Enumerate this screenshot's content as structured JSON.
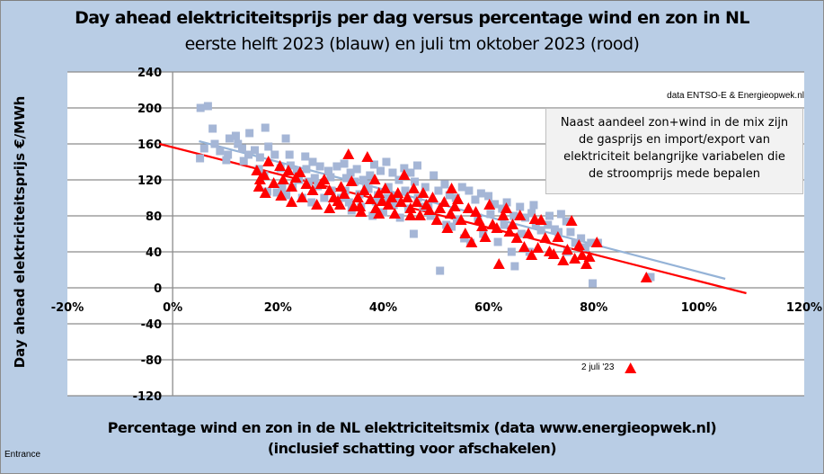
{
  "chart_data": {
    "type": "scatter",
    "title": "Day ahead elektriciteitsprijs per dag versus percentage wind en zon in NL",
    "subtitle": "eerste helft 2023 (blauw) en juli tm oktober 2023 (rood)",
    "xlabel": "Percentage wind en zon in de NL elektriciteitsmix (data www.energieopwek.nl)",
    "xlabel2": "(inclusief schatting voor afschakelen)",
    "ylabel": "Day ahead elektriciteitsprijs €/MWh",
    "xlim": [
      -20,
      120
    ],
    "ylim": [
      -120,
      240
    ],
    "x_ticks": [
      "-20%",
      "0%",
      "20%",
      "40%",
      "60%",
      "80%",
      "100%",
      "120%"
    ],
    "x_tick_values": [
      -20,
      0,
      20,
      40,
      60,
      80,
      100,
      120
    ],
    "y_ticks": [
      "240",
      "200",
      "160",
      "120",
      "80",
      "40",
      "0",
      "-40",
      "-80",
      "-120"
    ],
    "y_tick_values": [
      240,
      200,
      160,
      120,
      80,
      40,
      0,
      -40,
      -80,
      -120
    ],
    "grid": "horizontal",
    "legend": "none",
    "source_note": "data ENTSO-E & Energieopwek.nl",
    "text_box": [
      "Naast aandeel zon+wind in de mix zijn",
      "de gasprijs en import/export van",
      "elektriciteit belangrijke variabelen die",
      "de stroomprijs mede bepalen"
    ],
    "annotation": {
      "label": "2 juli '23",
      "x": 87,
      "y": -90
    },
    "series": [
      {
        "name": "eerste helft 2023",
        "color": "#a5b6d6",
        "marker": "square",
        "points": [
          [
            5.3,
            200
          ],
          [
            6.7,
            202
          ],
          [
            5.2,
            144
          ],
          [
            7.6,
            177
          ],
          [
            10.8,
            166
          ],
          [
            12,
            169
          ],
          [
            13.2,
            155
          ],
          [
            14.6,
            172
          ],
          [
            15.6,
            153
          ],
          [
            17.6,
            178
          ],
          [
            18.2,
            157
          ],
          [
            10.5,
            148
          ],
          [
            10.2,
            142
          ],
          [
            9,
            152
          ],
          [
            13.5,
            141
          ],
          [
            16.6,
            145
          ],
          [
            19.4,
            148
          ],
          [
            21.5,
            166
          ],
          [
            22.2,
            148
          ],
          [
            20.5,
            133
          ],
          [
            23.6,
            130
          ],
          [
            25.2,
            146
          ],
          [
            26.6,
            140
          ],
          [
            28,
            135
          ],
          [
            24,
            120
          ],
          [
            22.8,
            112
          ],
          [
            19.8,
            106
          ],
          [
            21.6,
            103
          ],
          [
            18,
            107
          ],
          [
            17.4,
            125
          ],
          [
            25.8,
            118
          ],
          [
            27.6,
            113
          ],
          [
            30,
            123
          ],
          [
            31.2,
            135
          ],
          [
            32.6,
            138
          ],
          [
            33.8,
            128
          ],
          [
            35,
            132
          ],
          [
            36.2,
            120
          ],
          [
            37.5,
            125
          ],
          [
            38.3,
            137
          ],
          [
            39.5,
            130
          ],
          [
            40.6,
            140
          ],
          [
            41.8,
            128
          ],
          [
            43,
            120
          ],
          [
            44,
            133
          ],
          [
            45.2,
            128
          ],
          [
            46.5,
            136
          ],
          [
            30.2,
            108
          ],
          [
            32,
            100
          ],
          [
            33.5,
            95
          ],
          [
            35.5,
            104
          ],
          [
            37.2,
            110
          ],
          [
            39,
            103
          ],
          [
            41,
            112
          ],
          [
            42.5,
            101
          ],
          [
            44.2,
            108
          ],
          [
            46,
            118
          ],
          [
            48,
            112
          ],
          [
            49.6,
            125
          ],
          [
            50.5,
            108
          ],
          [
            51.7,
            115
          ],
          [
            52.6,
            103
          ],
          [
            53.8,
            100
          ],
          [
            55,
            112
          ],
          [
            56.3,
            108
          ],
          [
            57.5,
            98
          ],
          [
            58.6,
            105
          ],
          [
            60,
            102
          ],
          [
            61.2,
            93
          ],
          [
            62.6,
            88
          ],
          [
            63.5,
            95
          ],
          [
            64.8,
            80
          ],
          [
            66,
            90
          ],
          [
            67,
            78
          ],
          [
            68.2,
            83
          ],
          [
            69,
            70
          ],
          [
            70,
            64
          ],
          [
            71.3,
            70
          ],
          [
            72.6,
            65
          ],
          [
            73.8,
            82
          ],
          [
            74.8,
            74
          ],
          [
            75.6,
            62
          ],
          [
            76.5,
            50
          ],
          [
            77.6,
            55
          ],
          [
            78.4,
            45
          ],
          [
            79.5,
            50
          ],
          [
            80.8,
            50
          ],
          [
            90.8,
            12
          ],
          [
            79.8,
            5
          ],
          [
            50.8,
            19
          ],
          [
            56.6,
            50
          ],
          [
            65,
            24
          ],
          [
            61.8,
            51
          ],
          [
            45.8,
            60
          ],
          [
            43.2,
            78
          ],
          [
            40,
            84
          ],
          [
            38,
            80
          ],
          [
            35.8,
            90
          ],
          [
            34,
            86
          ],
          [
            32.8,
            108
          ],
          [
            28.8,
            100
          ],
          [
            26.4,
            95
          ],
          [
            24.6,
            100
          ],
          [
            47.6,
            90
          ],
          [
            49,
            80
          ],
          [
            52,
            70
          ],
          [
            54,
            76
          ],
          [
            58,
            78
          ],
          [
            60.4,
            82
          ],
          [
            63,
            70
          ],
          [
            66.3,
            60
          ],
          [
            68.6,
            92
          ],
          [
            71.6,
            80
          ],
          [
            73.3,
            62
          ],
          [
            67.8,
            40
          ],
          [
            75,
            40
          ],
          [
            64.4,
            40
          ],
          [
            59,
            60
          ],
          [
            55.4,
            55
          ],
          [
            53,
            68
          ],
          [
            48.6,
            92
          ],
          [
            46.6,
            100
          ],
          [
            44.8,
            88
          ],
          [
            42,
            92
          ],
          [
            40.8,
            100
          ],
          [
            38.6,
            96
          ],
          [
            36.8,
            115
          ],
          [
            34.6,
            118
          ],
          [
            33,
            122
          ],
          [
            29.6,
            130
          ],
          [
            27,
            122
          ],
          [
            25.4,
            132
          ],
          [
            22.4,
            136
          ],
          [
            20.8,
            112
          ],
          [
            16.4,
            132
          ],
          [
            14.4,
            148
          ],
          [
            12.4,
            160
          ],
          [
            8,
            160
          ],
          [
            6,
            155
          ]
        ]
      },
      {
        "name": "juli tm oktober 2023",
        "color": "#ff0000",
        "marker": "triangle",
        "points": [
          [
            16,
            130
          ],
          [
            16.6,
            120
          ],
          [
            17.4,
            125
          ],
          [
            16.4,
            112
          ],
          [
            17.6,
            105
          ],
          [
            18.2,
            140
          ],
          [
            19.2,
            116
          ],
          [
            20.4,
            135
          ],
          [
            21,
            120
          ],
          [
            22,
            130
          ],
          [
            22.6,
            112
          ],
          [
            23.4,
            122
          ],
          [
            24.2,
            128
          ],
          [
            20.6,
            102
          ],
          [
            22.6,
            95
          ],
          [
            24.6,
            100
          ],
          [
            25.4,
            115
          ],
          [
            26.6,
            108
          ],
          [
            27.4,
            92
          ],
          [
            28.2,
            115
          ],
          [
            28.8,
            120
          ],
          [
            29.8,
            108
          ],
          [
            30.6,
            100
          ],
          [
            31.4,
            96
          ],
          [
            32,
            112
          ],
          [
            32.6,
            104
          ],
          [
            33.4,
            148
          ],
          [
            34,
            118
          ],
          [
            34.4,
            90
          ],
          [
            35.2,
            100
          ],
          [
            35.8,
            84
          ],
          [
            36.4,
            108
          ],
          [
            37,
            145
          ],
          [
            37.6,
            98
          ],
          [
            38.4,
            120
          ],
          [
            38.6,
            88
          ],
          [
            39.2,
            105
          ],
          [
            39.8,
            96
          ],
          [
            40.4,
            110
          ],
          [
            41,
            92
          ],
          [
            41.6,
            100
          ],
          [
            42.2,
            82
          ],
          [
            42.8,
            105
          ],
          [
            43.4,
            95
          ],
          [
            44,
            125
          ],
          [
            44.6,
            100
          ],
          [
            45.2,
            88
          ],
          [
            45.8,
            110
          ],
          [
            46.4,
            95
          ],
          [
            47,
            80
          ],
          [
            47.6,
            105
          ],
          [
            48.2,
            92
          ],
          [
            48.8,
            86
          ],
          [
            49.4,
            100
          ],
          [
            50.2,
            75
          ],
          [
            50.8,
            88
          ],
          [
            51.6,
            95
          ],
          [
            52.2,
            66
          ],
          [
            52.8,
            82
          ],
          [
            53.6,
            90
          ],
          [
            54.2,
            98
          ],
          [
            54.8,
            75
          ],
          [
            55.6,
            60
          ],
          [
            56.2,
            88
          ],
          [
            56.8,
            50
          ],
          [
            57.6,
            84
          ],
          [
            58.2,
            75
          ],
          [
            58.8,
            68
          ],
          [
            59.4,
            56
          ],
          [
            60.2,
            92
          ],
          [
            60.8,
            70
          ],
          [
            61.6,
            66
          ],
          [
            62,
            26
          ],
          [
            62.8,
            80
          ],
          [
            63.4,
            88
          ],
          [
            64,
            62
          ],
          [
            64.6,
            70
          ],
          [
            65.4,
            55
          ],
          [
            66,
            80
          ],
          [
            66.8,
            45
          ],
          [
            67.6,
            60
          ],
          [
            68.2,
            36
          ],
          [
            68.8,
            76
          ],
          [
            69.4,
            44
          ],
          [
            70,
            75
          ],
          [
            70.8,
            55
          ],
          [
            71.6,
            40
          ],
          [
            72.4,
            37
          ],
          [
            73.2,
            56
          ],
          [
            74.2,
            30
          ],
          [
            75,
            42
          ],
          [
            75.8,
            74
          ],
          [
            76.4,
            32
          ],
          [
            77.2,
            47
          ],
          [
            77.8,
            36
          ],
          [
            78.6,
            26
          ],
          [
            79.2,
            34
          ],
          [
            80.6,
            50
          ],
          [
            90,
            11
          ],
          [
            35.6,
            90
          ],
          [
            45.2,
            80
          ],
          [
            29.8,
            88
          ],
          [
            31.8,
            92
          ],
          [
            53,
            110
          ],
          [
            39.2,
            82
          ],
          [
            87,
            -90
          ]
        ]
      }
    ],
    "trendlines": [
      {
        "name": "trend eerste helft 2023",
        "color": "#95b3d7",
        "x": [
          5,
          105
        ],
        "y": [
          163,
          10
        ]
      },
      {
        "name": "trend juli tm oktober 2023",
        "color": "#ff0000",
        "x": [
          -2.5,
          109
        ],
        "y": [
          160,
          -6
        ]
      }
    ]
  },
  "footer": {
    "label": "Entrance"
  }
}
